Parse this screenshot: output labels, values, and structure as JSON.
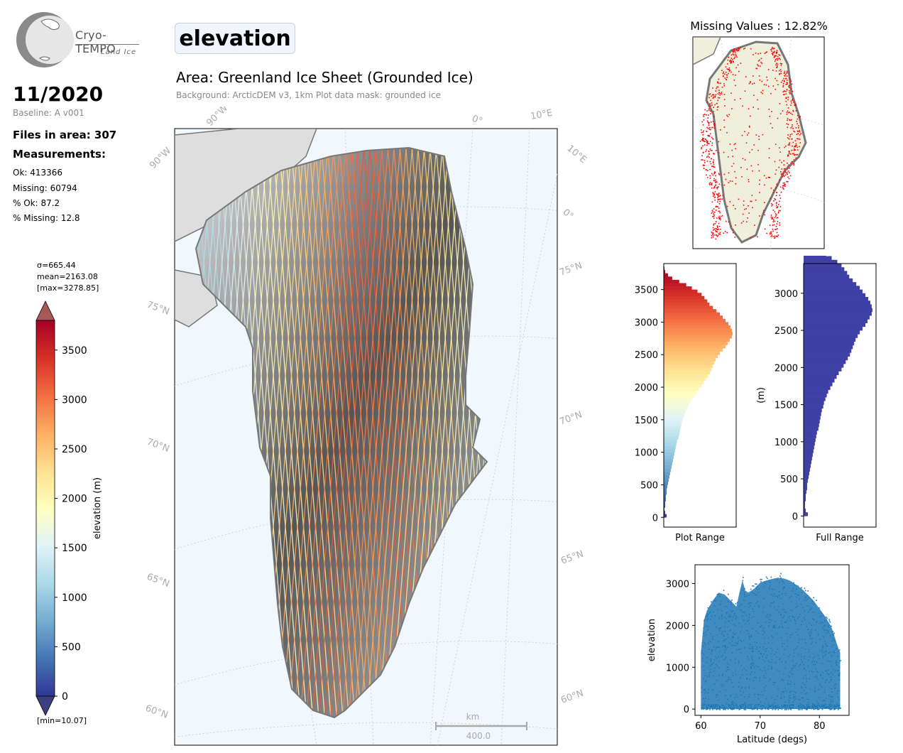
{
  "logo": {
    "brand": "Cryo-TEMPO",
    "sub": "Land Ice"
  },
  "header": {
    "date": "11/2020",
    "baseline": "Baseline: A v001",
    "files": "Files in area: 307",
    "measurements_heading": "Measurements:",
    "stats": [
      "Ok: 413366",
      "Missing: 60794",
      "% Ok: 87.2",
      "% Missing: 12.8"
    ]
  },
  "parameter": "elevation",
  "area_title": "Area: Greenland Ice Sheet (Grounded Ice)",
  "background_note": "Background: ArcticDEM v3, 1km   Plot data mask: grounded ice",
  "colorbar": {
    "label": "elevation (m)",
    "sigma": "σ=665.44",
    "mean": "mean=2163.08",
    "max": "[max=3278.85]",
    "min": "[min=10.07]",
    "ticks": [
      "0",
      "500",
      "1000",
      "1500",
      "2000",
      "2500",
      "3000",
      "3500"
    ],
    "colors": [
      "#313695",
      "#4575b4",
      "#74add1",
      "#abd9e9",
      "#e0f3f8",
      "#ffffbf",
      "#fee090",
      "#fdae61",
      "#f46d43",
      "#d73027",
      "#a50026"
    ]
  },
  "map": {
    "lon_labels": [
      "90°W",
      "90°W",
      "0°",
      "10°E",
      "10°E",
      "0°"
    ],
    "lat_labels_left": [
      "75°N",
      "70°N",
      "65°N",
      "60°N"
    ],
    "lat_labels_right": [
      "75°N",
      "70°N",
      "65°N",
      "60°N"
    ],
    "scalebar_unit": "km",
    "scalebar_value": "400.0",
    "ocean_color": "#f0f7fd",
    "coast_color": "#777777"
  },
  "chart_data": [
    {
      "type": "map",
      "title": "Missing Values : 12.82%",
      "missing_percent": 12.82,
      "ice_color": "#efefdc",
      "missing_color": "#ff0000"
    },
    {
      "type": "bar",
      "orientation": "horizontal",
      "xlabel": "Plot Range",
      "ylabel": "",
      "ylim": [
        -150,
        3900
      ],
      "yticks": [
        0,
        500,
        1000,
        1500,
        2000,
        2500,
        3000,
        3500
      ],
      "bin_width": 50,
      "bins_start": 0,
      "values": [
        4,
        2,
        1,
        2,
        2,
        3,
        3,
        4,
        4,
        5,
        6,
        7,
        8,
        9,
        10,
        11,
        12,
        13,
        14,
        15,
        16,
        17,
        18,
        19,
        21,
        22,
        23,
        24,
        25,
        26,
        28,
        29,
        31,
        33,
        35,
        38,
        41,
        44,
        47,
        50,
        54,
        57,
        60,
        63,
        66,
        68,
        70,
        72,
        74,
        77,
        80,
        84,
        88,
        91,
        94,
        97,
        98,
        97,
        95,
        92,
        88,
        84,
        80,
        75,
        70,
        65,
        62,
        58,
        54,
        48,
        40,
        32,
        22,
        12,
        6,
        2,
        1
      ]
    },
    {
      "type": "bar",
      "orientation": "horizontal",
      "xlabel": "Full Range",
      "ylabel": "(m)",
      "ylim": [
        -150,
        3400
      ],
      "yticks": [
        0,
        500,
        1000,
        1500,
        2000,
        2500,
        3000
      ],
      "bin_width": 50,
      "bins_start": 0,
      "values": [
        6,
        3,
        2,
        2,
        3,
        3,
        4,
        5,
        5,
        6,
        7,
        8,
        9,
        10,
        11,
        12,
        13,
        14,
        15,
        16,
        17,
        18,
        19,
        21,
        22,
        23,
        24,
        25,
        26,
        28,
        29,
        31,
        33,
        35,
        38,
        41,
        44,
        47,
        50,
        54,
        57,
        60,
        63,
        66,
        68,
        70,
        72,
        74,
        77,
        80,
        84,
        88,
        91,
        94,
        97,
        98,
        97,
        95,
        92,
        88,
        84,
        80,
        75,
        70,
        65,
        62,
        58,
        54,
        48,
        40,
        32,
        22,
        12,
        6,
        2,
        1
      ],
      "bar_color": "#3f40a5"
    },
    {
      "type": "scatter",
      "xlabel": "Latitude (degs)",
      "ylabel": "elevation",
      "xlim": [
        59,
        85
      ],
      "ylim": [
        -150,
        3450
      ],
      "xticks": [
        60,
        70,
        80
      ],
      "yticks": [
        0,
        1000,
        2000,
        3000
      ],
      "envelope_x": [
        60,
        60.5,
        61,
        62,
        63,
        64,
        65,
        66,
        66.5,
        67,
        67.5,
        68,
        69,
        70,
        71,
        72,
        73,
        74,
        75,
        76,
        77,
        78,
        79,
        80,
        81,
        82,
        83,
        83.5
      ],
      "envelope_y": [
        1400,
        2200,
        2450,
        2700,
        2900,
        2850,
        2700,
        2550,
        2900,
        3200,
        2950,
        2900,
        3000,
        3150,
        3200,
        3240,
        3270,
        3250,
        3200,
        3100,
        3000,
        2850,
        2700,
        2500,
        2300,
        2050,
        1600,
        1400
      ],
      "point_color": "#1f77b4"
    }
  ]
}
